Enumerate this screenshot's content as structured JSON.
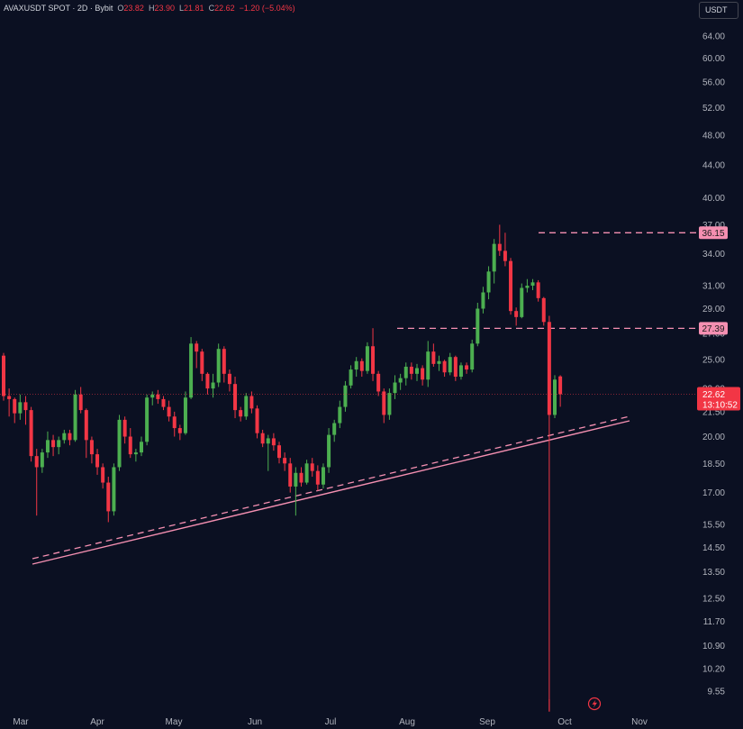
{
  "header": {
    "symbol": "AVAXUSDT SPOT · 2D · Bybit",
    "open_label": "O",
    "open": "23.82",
    "high_label": "H",
    "high": "23.90",
    "low_label": "L",
    "low": "21.81",
    "close_label": "C",
    "close": "22.62",
    "change": "−1.20 (−5.04%)"
  },
  "currency_button": "USDT",
  "colors": {
    "up": "#26a69a",
    "up_body": "#4caf50",
    "down": "#f23645",
    "background": "#0b1022",
    "drawing": "#f48fb1"
  },
  "chart_data": {
    "type": "candlestick",
    "title": "",
    "xlabel": "",
    "ylabel": "",
    "y_scale": "log",
    "x_tick_labels": [
      "Mar",
      "Apr",
      "May",
      "Jun",
      "Jul",
      "Aug",
      "Sep",
      "Oct",
      "Nov"
    ],
    "y_tick_labels": [
      "64.00",
      "60.00",
      "56.00",
      "52.00",
      "48.00",
      "44.00",
      "40.00",
      "37.00",
      "34.00",
      "31.00",
      "29.00",
      "27.00",
      "25.00",
      "23.00",
      "21.50",
      "20.00",
      "18.50",
      "17.00",
      "15.50",
      "14.50",
      "13.50",
      "12.50",
      "11.70",
      "10.90",
      "10.20",
      "9.55"
    ],
    "candles": [
      [
        25.3,
        25.5,
        22.2,
        22.5
      ],
      [
        22.5,
        23.0,
        21.2,
        22.3
      ],
      [
        22.3,
        22.4,
        20.8,
        21.4
      ],
      [
        21.4,
        22.6,
        21.0,
        22.1
      ],
      [
        22.1,
        22.5,
        20.7,
        21.6
      ],
      [
        21.6,
        21.8,
        18.6,
        18.9
      ],
      [
        18.9,
        19.3,
        15.9,
        18.3
      ],
      [
        18.3,
        19.3,
        18.0,
        19.1
      ],
      [
        19.1,
        20.3,
        18.8,
        19.8
      ],
      [
        19.8,
        20.1,
        18.9,
        19.4
      ],
      [
        19.4,
        20.0,
        19.0,
        19.8
      ],
      [
        19.8,
        20.4,
        19.6,
        20.2
      ],
      [
        20.2,
        20.4,
        19.5,
        19.8
      ],
      [
        19.8,
        22.9,
        19.7,
        22.6
      ],
      [
        22.6,
        23.1,
        21.4,
        21.6
      ],
      [
        21.6,
        21.7,
        18.8,
        19.8
      ],
      [
        19.8,
        20.0,
        18.5,
        19.0
      ],
      [
        19.0,
        19.3,
        17.9,
        18.3
      ],
      [
        18.3,
        18.5,
        17.2,
        17.5
      ],
      [
        17.5,
        17.8,
        15.6,
        16.1
      ],
      [
        16.1,
        18.5,
        15.9,
        18.3
      ],
      [
        18.3,
        21.3,
        18.1,
        21.0
      ],
      [
        21.0,
        21.2,
        19.6,
        20.0
      ],
      [
        20.0,
        20.5,
        18.8,
        19.0
      ],
      [
        19.0,
        19.3,
        18.6,
        19.1
      ],
      [
        19.1,
        20.0,
        18.9,
        19.7
      ],
      [
        19.7,
        22.6,
        19.5,
        22.4
      ],
      [
        22.4,
        22.8,
        21.9,
        22.6
      ],
      [
        22.6,
        22.9,
        22.0,
        22.3
      ],
      [
        22.3,
        22.5,
        21.6,
        21.8
      ],
      [
        21.8,
        22.2,
        20.9,
        21.2
      ],
      [
        21.2,
        21.5,
        20.0,
        20.5
      ],
      [
        20.5,
        20.7,
        19.8,
        20.2
      ],
      [
        20.2,
        22.8,
        20.1,
        22.4
      ],
      [
        22.4,
        26.7,
        22.3,
        26.2
      ],
      [
        26.2,
        26.4,
        24.4,
        25.6
      ],
      [
        25.6,
        25.8,
        23.5,
        24.0
      ],
      [
        24.0,
        24.1,
        22.6,
        23.0
      ],
      [
        23.0,
        24.0,
        22.4,
        23.4
      ],
      [
        23.4,
        26.2,
        23.1,
        25.8
      ],
      [
        25.8,
        26.0,
        23.4,
        24.0
      ],
      [
        24.0,
        24.3,
        22.8,
        23.3
      ],
      [
        23.3,
        23.8,
        21.1,
        21.6
      ],
      [
        21.6,
        21.8,
        20.9,
        21.2
      ],
      [
        21.2,
        22.7,
        21.0,
        22.5
      ],
      [
        22.5,
        22.8,
        21.4,
        21.7
      ],
      [
        21.7,
        21.9,
        19.9,
        20.2
      ],
      [
        20.2,
        20.4,
        19.4,
        19.6
      ],
      [
        19.6,
        20.1,
        18.1,
        19.9
      ],
      [
        19.9,
        20.2,
        19.2,
        19.5
      ],
      [
        19.5,
        19.7,
        18.5,
        18.8
      ],
      [
        18.8,
        19.1,
        18.1,
        18.5
      ],
      [
        18.5,
        18.8,
        17.0,
        17.3
      ],
      [
        17.3,
        18.3,
        15.9,
        18.0
      ],
      [
        18.0,
        18.3,
        17.3,
        17.5
      ],
      [
        17.5,
        18.7,
        17.4,
        18.5
      ],
      [
        18.5,
        18.8,
        17.8,
        18.1
      ],
      [
        18.1,
        18.4,
        17.1,
        17.4
      ],
      [
        17.4,
        18.5,
        17.2,
        18.3
      ],
      [
        18.3,
        20.5,
        18.0,
        20.1
      ],
      [
        20.1,
        21.0,
        19.7,
        20.8
      ],
      [
        20.8,
        22.2,
        20.5,
        21.8
      ],
      [
        21.8,
        23.5,
        21.5,
        23.2
      ],
      [
        23.2,
        24.6,
        23.0,
        24.3
      ],
      [
        24.3,
        25.2,
        23.8,
        24.9
      ],
      [
        24.9,
        25.1,
        23.8,
        24.2
      ],
      [
        24.2,
        26.3,
        24.0,
        26.0
      ],
      [
        26.0,
        27.4,
        23.5,
        24.0
      ],
      [
        24.0,
        24.2,
        22.5,
        22.8
      ],
      [
        22.8,
        23.0,
        20.8,
        21.3
      ],
      [
        21.3,
        23.0,
        21.0,
        22.7
      ],
      [
        22.7,
        23.9,
        22.3,
        23.4
      ],
      [
        23.4,
        24.0,
        22.9,
        23.7
      ],
      [
        23.7,
        24.8,
        23.2,
        24.5
      ],
      [
        24.5,
        24.8,
        23.6,
        24.0
      ],
      [
        24.0,
        24.7,
        23.5,
        24.4
      ],
      [
        24.4,
        24.6,
        23.2,
        23.6
      ],
      [
        23.6,
        26.4,
        23.1,
        25.6
      ],
      [
        25.6,
        26.2,
        24.5,
        24.7
      ],
      [
        24.7,
        25.3,
        24.2,
        24.9
      ],
      [
        24.9,
        25.0,
        23.8,
        24.1
      ],
      [
        24.1,
        25.5,
        23.9,
        25.2
      ],
      [
        25.2,
        25.3,
        23.5,
        23.8
      ],
      [
        23.8,
        24.8,
        23.6,
        24.6
      ],
      [
        24.6,
        24.8,
        24.0,
        24.3
      ],
      [
        24.3,
        26.5,
        24.1,
        26.2
      ],
      [
        26.2,
        29.5,
        26.0,
        29.0
      ],
      [
        29.0,
        30.9,
        28.6,
        30.4
      ],
      [
        30.4,
        32.8,
        29.8,
        32.3
      ],
      [
        32.3,
        35.5,
        31.2,
        35.0
      ],
      [
        35.0,
        37.0,
        33.8,
        34.3
      ],
      [
        34.3,
        36.15,
        32.8,
        33.3
      ],
      [
        33.3,
        33.6,
        28.5,
        28.8
      ],
      [
        28.8,
        29.1,
        27.6,
        28.3
      ],
      [
        28.3,
        31.2,
        28.2,
        30.8
      ],
      [
        30.8,
        31.6,
        30.4,
        31.0
      ],
      [
        31.0,
        31.6,
        30.6,
        31.3
      ],
      [
        31.3,
        31.5,
        29.6,
        29.9
      ],
      [
        29.9,
        30.0,
        27.6,
        27.9
      ],
      [
        27.9,
        28.4,
        9.0,
        21.3
      ],
      [
        21.3,
        23.9,
        21.1,
        23.6
      ],
      [
        23.82,
        23.9,
        21.81,
        22.62
      ]
    ],
    "current_price": "22.62",
    "countdown": "13:10:52",
    "levels": [
      {
        "price": 36.15,
        "label": "36.15"
      },
      {
        "price": 27.39,
        "label": "27.39"
      }
    ]
  }
}
